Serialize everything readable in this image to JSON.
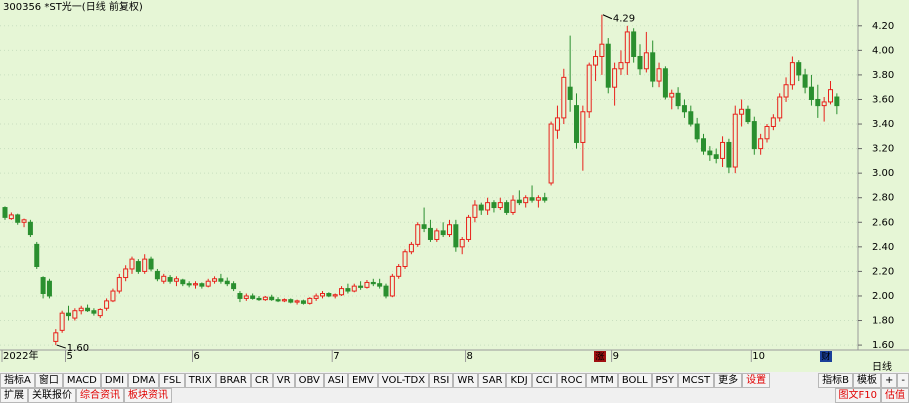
{
  "chart_data": {
    "type": "candlestick",
    "title": "300356 *ST光一(日线 前复权)",
    "period_label": "日线",
    "categories": [
      "2022年",
      null,
      null,
      null,
      null,
      null,
      null,
      null,
      null,
      null,
      "5",
      null,
      null,
      null,
      null,
      null,
      null,
      null,
      null,
      null,
      null,
      null,
      null,
      null,
      null,
      null,
      null,
      null,
      null,
      null,
      "6",
      null,
      null,
      null,
      null,
      null,
      null,
      null,
      null,
      null,
      null,
      null,
      null,
      null,
      null,
      null,
      null,
      null,
      null,
      null,
      null,
      null,
      "7",
      null,
      null,
      null,
      null,
      null,
      null,
      null,
      null,
      null,
      null,
      null,
      null,
      null,
      null,
      null,
      null,
      null,
      null,
      null,
      null,
      "8",
      null,
      null,
      null,
      null,
      null,
      null,
      null,
      null,
      null,
      null,
      null,
      null,
      null,
      null,
      null,
      null,
      null,
      null,
      null,
      null,
      null,
      null,
      "9",
      null,
      null,
      null,
      null,
      null,
      null,
      null,
      null,
      null,
      null,
      null,
      null,
      null,
      null,
      null,
      null,
      null,
      null,
      null,
      null,
      null,
      "10",
      null,
      null,
      null,
      null,
      null,
      null,
      null,
      null,
      null,
      null,
      null,
      null,
      null
    ],
    "open": [
      2.72,
      2.63,
      2.66,
      2.6,
      2.6,
      2.42,
      2.15,
      2.12,
      1.63,
      1.72,
      1.86,
      1.82,
      1.88,
      1.9,
      1.88,
      1.84,
      1.9,
      1.96,
      2.04,
      2.15,
      2.22,
      2.28,
      2.2,
      2.3,
      2.2,
      2.12,
      2.15,
      2.12,
      2.13,
      2.1,
      2.09,
      2.1,
      2.08,
      2.12,
      2.14,
      2.12,
      2.1,
      2.02,
      1.98,
      2.0,
      1.98,
      1.97,
      1.99,
      1.97,
      1.96,
      1.97,
      1.95,
      1.96,
      1.94,
      1.98,
      2.0,
      2.02,
      2.0,
      2.01,
      2.06,
      2.04,
      2.08,
      2.07,
      2.11,
      2.1,
      2.08,
      2.0,
      2.16,
      2.24,
      2.36,
      2.42,
      2.58,
      2.55,
      2.46,
      2.53,
      2.5,
      2.58,
      2.4,
      2.46,
      2.64,
      2.74,
      2.7,
      2.76,
      2.72,
      2.76,
      2.68,
      2.78,
      2.76,
      2.8,
      2.78,
      2.8,
      2.92,
      3.35,
      3.45,
      3.7,
      3.55,
      3.25,
      3.5,
      3.88,
      3.95,
      4.05,
      3.7,
      3.85,
      3.9,
      4.15,
      3.95,
      3.85,
      3.98,
      3.75,
      3.85,
      3.62,
      3.65,
      3.55,
      3.5,
      3.4,
      3.28,
      3.18,
      3.15,
      3.12,
      3.25,
      3.05,
      3.48,
      3.52,
      3.42,
      3.2,
      3.28,
      3.38,
      3.45,
      3.62,
      3.72,
      3.9,
      3.8,
      3.7,
      3.6,
      3.55,
      3.58,
      3.62
    ],
    "high": [
      2.73,
      2.68,
      2.67,
      2.63,
      2.62,
      2.44,
      2.16,
      2.14,
      1.73,
      1.88,
      1.92,
      1.9,
      1.92,
      1.93,
      1.9,
      1.9,
      1.98,
      2.06,
      2.18,
      2.25,
      2.32,
      2.3,
      2.34,
      2.32,
      2.22,
      2.18,
      2.17,
      2.16,
      2.14,
      2.12,
      2.12,
      2.11,
      2.14,
      2.16,
      2.18,
      2.15,
      2.12,
      2.04,
      2.02,
      2.02,
      2.0,
      2.0,
      2.01,
      1.99,
      1.98,
      1.98,
      1.97,
      1.97,
      1.99,
      2.02,
      2.04,
      2.03,
      2.02,
      2.08,
      2.1,
      2.1,
      2.12,
      2.13,
      2.14,
      2.14,
      2.1,
      2.18,
      2.26,
      2.38,
      2.44,
      2.6,
      2.72,
      2.62,
      2.55,
      2.6,
      2.62,
      2.62,
      2.48,
      2.66,
      2.78,
      2.76,
      2.8,
      2.78,
      2.8,
      2.78,
      2.82,
      2.86,
      2.82,
      2.9,
      2.82,
      2.84,
      3.42,
      3.55,
      3.85,
      4.12,
      3.65,
      3.55,
      3.9,
      4.0,
      4.29,
      4.1,
      3.9,
      4.0,
      4.2,
      4.18,
      4.05,
      4.15,
      4.08,
      3.9,
      3.87,
      3.68,
      3.7,
      3.6,
      3.55,
      3.45,
      3.32,
      3.22,
      3.2,
      3.3,
      3.28,
      3.55,
      3.6,
      3.55,
      3.46,
      3.32,
      3.4,
      3.48,
      3.65,
      3.78,
      3.95,
      3.92,
      3.85,
      3.8,
      3.72,
      3.62,
      3.75,
      3.65
    ],
    "low": [
      2.62,
      2.62,
      2.58,
      2.56,
      2.48,
      2.22,
      1.98,
      1.98,
      1.6,
      1.7,
      1.8,
      1.8,
      1.85,
      1.87,
      1.84,
      1.82,
      1.88,
      1.95,
      2.02,
      2.12,
      2.18,
      2.18,
      2.18,
      2.2,
      2.12,
      2.1,
      2.1,
      2.08,
      2.08,
      2.07,
      2.06,
      2.06,
      2.07,
      2.1,
      2.1,
      2.08,
      2.04,
      1.95,
      1.96,
      1.97,
      1.96,
      1.96,
      1.96,
      1.95,
      1.95,
      1.94,
      1.93,
      1.93,
      1.93,
      1.96,
      1.98,
      1.99,
      1.98,
      2.0,
      2.02,
      2.03,
      2.05,
      2.06,
      2.08,
      2.06,
      1.98,
      1.99,
      2.14,
      2.22,
      2.34,
      2.4,
      2.52,
      2.44,
      2.44,
      2.48,
      2.48,
      2.36,
      2.34,
      2.44,
      2.6,
      2.66,
      2.66,
      2.68,
      2.7,
      2.66,
      2.66,
      2.74,
      2.72,
      2.76,
      2.72,
      2.76,
      2.9,
      3.28,
      3.4,
      3.5,
      3.2,
      3.02,
      3.45,
      3.75,
      3.8,
      3.65,
      3.55,
      3.8,
      3.8,
      3.9,
      3.8,
      3.82,
      3.7,
      3.7,
      3.6,
      3.52,
      3.52,
      3.45,
      3.38,
      3.25,
      3.15,
      3.1,
      3.08,
      3.05,
      3.0,
      3.0,
      3.38,
      3.4,
      3.15,
      3.15,
      3.25,
      3.35,
      3.42,
      3.58,
      3.68,
      3.75,
      3.65,
      3.55,
      3.45,
      3.42,
      3.56,
      3.48
    ],
    "close": [
      2.64,
      2.66,
      2.6,
      2.62,
      2.5,
      2.24,
      2.02,
      2.0,
      1.7,
      1.86,
      1.84,
      1.88,
      1.9,
      1.88,
      1.86,
      1.89,
      1.96,
      2.04,
      2.15,
      2.22,
      2.3,
      2.2,
      2.3,
      2.22,
      2.14,
      2.16,
      2.12,
      2.14,
      2.1,
      2.09,
      2.1,
      2.08,
      2.12,
      2.14,
      2.12,
      2.1,
      2.06,
      1.98,
      2.0,
      1.98,
      1.97,
      1.99,
      1.97,
      1.96,
      1.97,
      1.95,
      1.96,
      1.94,
      1.98,
      2.0,
      2.02,
      2.0,
      2.01,
      2.06,
      2.04,
      2.08,
      2.07,
      2.11,
      2.1,
      2.08,
      2.0,
      2.16,
      2.24,
      2.36,
      2.42,
      2.58,
      2.55,
      2.46,
      2.53,
      2.5,
      2.58,
      2.4,
      2.46,
      2.64,
      2.74,
      2.7,
      2.76,
      2.72,
      2.76,
      2.68,
      2.78,
      2.76,
      2.8,
      2.78,
      2.8,
      2.78,
      3.4,
      3.45,
      3.78,
      3.6,
      3.25,
      3.5,
      3.88,
      3.95,
      4.05,
      3.7,
      3.85,
      3.9,
      4.15,
      3.95,
      3.85,
      3.98,
      3.75,
      3.85,
      3.62,
      3.65,
      3.55,
      3.5,
      3.4,
      3.28,
      3.18,
      3.15,
      3.12,
      3.25,
      3.05,
      3.48,
      3.52,
      3.42,
      3.2,
      3.28,
      3.38,
      3.45,
      3.62,
      3.72,
      3.9,
      3.8,
      3.7,
      3.6,
      3.55,
      3.58,
      3.68,
      3.55
    ],
    "up_color": "#e8221c",
    "down_color": "#2a8f2f",
    "ylim": [
      1.56,
      4.41
    ],
    "yticks": [
      {
        "value": 1.6,
        "label": "1.60"
      },
      {
        "value": 1.8,
        "label": "1.80"
      },
      {
        "value": 2.0,
        "label": "2.00"
      },
      {
        "value": 2.2,
        "label": "2.20"
      },
      {
        "value": 2.4,
        "label": "2.40"
      },
      {
        "value": 2.6,
        "label": "2.60"
      },
      {
        "value": 2.8,
        "label": "2.80"
      },
      {
        "value": 3.0,
        "label": "3.00"
      },
      {
        "value": 3.2,
        "label": "3.20"
      },
      {
        "value": 3.4,
        "label": "3.40"
      },
      {
        "value": 3.6,
        "label": "3.60"
      },
      {
        "value": 3.8,
        "label": "3.80"
      },
      {
        "value": 4.0,
        "label": "4.00"
      },
      {
        "value": 4.2,
        "label": "4.20"
      }
    ],
    "grid": true,
    "annotations": [
      {
        "value": 4.29,
        "label": "4.29"
      },
      {
        "value": 1.6,
        "label": "1.60"
      }
    ],
    "event_icons": [
      "涨",
      "财"
    ]
  },
  "toolbar": {
    "row1": [
      "指标A",
      "窗口",
      "MACD",
      "DMI",
      "DMA",
      "FSL",
      "TRIX",
      "BRAR",
      "CR",
      "VR",
      "OBV",
      "ASI",
      "EMV",
      "VOL-TDX",
      "RSI",
      "WR",
      "SAR",
      "KDJ",
      "CCI",
      "ROC",
      "MTM",
      "BOLL",
      "PSY",
      "MCST",
      "更多",
      {
        "label": "设置",
        "color": "#e00000"
      }
    ],
    "row1_right": [
      "指标B",
      "模板",
      "+",
      "-"
    ],
    "row2": [
      "扩展",
      "关联报价",
      {
        "label": "综合资讯",
        "color": "#e00000"
      },
      {
        "label": "板块资讯",
        "color": "#e00000"
      }
    ],
    "row2_right": [
      {
        "label": "图文F10",
        "color": "#e00000"
      },
      {
        "label": "估值",
        "color": "#e00000"
      }
    ]
  }
}
